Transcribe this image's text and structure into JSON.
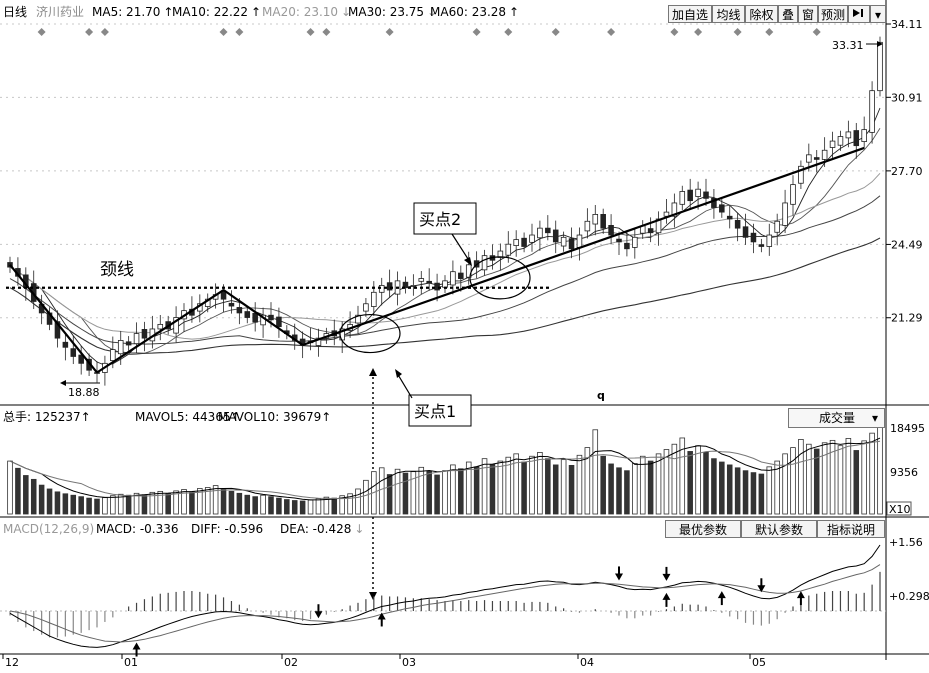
{
  "header": {
    "period": "日线",
    "stock_name": "济川药业",
    "ma": [
      {
        "label": "MA5: 21.70",
        "arrow": "↑",
        "color": "#000000"
      },
      {
        "label": "MA10: 22.22",
        "arrow": "↑",
        "color": "#000000"
      },
      {
        "label": "MA20: 23.10",
        "arrow": "↓",
        "color": "#999999"
      },
      {
        "label": "MA30: 23.75",
        "arrow": "↓",
        "color": "#000000"
      },
      {
        "label": "MA60: 23.28",
        "arrow": "↑",
        "color": "#000000"
      }
    ]
  },
  "toolbar": {
    "add_watch": "加自选",
    "avg_line": "均线",
    "ex_right": "除权",
    "overlay": "叠",
    "window": "窗",
    "forecast": "预测",
    "more_icon": "▾"
  },
  "price_panel": {
    "y_ticks": [
      "34.11",
      "30.91",
      "27.70",
      "24.49",
      "21.29"
    ],
    "neckline_label": "颈线",
    "buy1_label": "买点1",
    "buy2_label": "买点2",
    "low_label": "18.88",
    "high_label": "33.31",
    "stray_mark": "q"
  },
  "volume_panel": {
    "label": "总手: 125237",
    "mavol5": "MAVOL5: 44365",
    "mavol10": "MAVOL10: 39679",
    "arrow": "↑",
    "dropdown": "成交量",
    "y_ticks": [
      "18495",
      "9356"
    ],
    "unit": "X10"
  },
  "macd_panel": {
    "title": "MACD(12,26,9)",
    "macd": "MACD: -0.336",
    "diff": "DIFF: -0.596",
    "dea": "DEA: -0.428",
    "arrow_up": "↑",
    "arrow_down": "↓",
    "btn_opt": "最优参数",
    "btn_default": "默认参数",
    "btn_help": "指标说明",
    "y_ticks": [
      "+1.56",
      "+0.298"
    ]
  },
  "x_axis": [
    "12",
    "01",
    "02",
    "03",
    "04",
    "05"
  ],
  "chart_data": {
    "type": "candlestick",
    "stock": "济川药业",
    "y_range": [
      17.7,
      34.11
    ],
    "neckline": 22.6,
    "buy_points": [
      {
        "label": "买点1",
        "price": 20.6
      },
      {
        "label": "买点2",
        "price": 22.9
      }
    ],
    "extremes": {
      "low": 18.88,
      "high": 33.31
    },
    "trend_lines": [
      {
        "name": "W-left-down",
        "from": 23.6,
        "to": 18.9
      },
      {
        "name": "W-left-up",
        "from": 18.9,
        "to": 22.5
      },
      {
        "name": "W-right-down",
        "from": 22.5,
        "to": 20.1
      },
      {
        "name": "breakout-trend",
        "from": 20.1,
        "to": 28.7
      }
    ],
    "closes": [
      23.5,
      23.1,
      22.6,
      22.0,
      21.5,
      21.0,
      20.4,
      20.0,
      19.6,
      19.3,
      19.0,
      18.9,
      19.3,
      19.9,
      20.3,
      20.1,
      20.6,
      20.4,
      20.8,
      21.0,
      20.8,
      21.3,
      21.6,
      21.4,
      21.9,
      22.1,
      22.3,
      22.1,
      21.8,
      21.5,
      21.3,
      21.1,
      21.4,
      21.2,
      20.9,
      20.6,
      20.3,
      20.1,
      20.2,
      20.4,
      20.6,
      20.5,
      20.8,
      21.0,
      21.4,
      21.9,
      22.4,
      22.7,
      22.5,
      22.9,
      22.6,
      22.7,
      23.0,
      22.8,
      22.5,
      22.9,
      23.3,
      23.0,
      23.6,
      23.5,
      24.0,
      23.8,
      24.2,
      24.5,
      24.7,
      24.4,
      24.9,
      25.2,
      25.0,
      24.6,
      24.8,
      24.3,
      24.9,
      25.5,
      25.8,
      25.2,
      24.9,
      24.6,
      24.3,
      24.8,
      25.3,
      25.0,
      25.6,
      25.9,
      26.3,
      26.8,
      26.4,
      26.9,
      26.5,
      26.1,
      25.9,
      25.6,
      25.2,
      24.8,
      24.6,
      24.4,
      24.9,
      25.5,
      26.3,
      27.1,
      27.9,
      28.4,
      28.2,
      28.6,
      29.0,
      29.2,
      29.4,
      28.8,
      29.5,
      31.2,
      33.31
    ],
    "volume_range": [
      0,
      18495
    ],
    "volumes": [
      11000,
      9500,
      8000,
      7200,
      6000,
      5200,
      4600,
      4200,
      3900,
      3600,
      3300,
      3100,
      3400,
      3800,
      4100,
      3900,
      4300,
      4000,
      4500,
      4700,
      4200,
      4800,
      5100,
      4600,
      5300,
      5500,
      5900,
      5200,
      4700,
      4300,
      3900,
      3600,
      3900,
      3600,
      3300,
      3000,
      2800,
      2700,
      2900,
      3200,
      3500,
      3300,
      3800,
      4200,
      5200,
      7000,
      8800,
      9600,
      8200,
      9300,
      8500,
      8800,
      9700,
      8900,
      8100,
      9000,
      10200,
      9400,
      10800,
      9800,
      11500,
      10300,
      11000,
      11800,
      12500,
      10800,
      12000,
      12800,
      11500,
      10200,
      11300,
      10100,
      12200,
      13800,
      17500,
      12000,
      10400,
      9600,
      9000,
      10500,
      12000,
      11000,
      12500,
      13400,
      14500,
      15800,
      13000,
      14200,
      12800,
      11500,
      10800,
      10200,
      9600,
      9000,
      8600,
      8300,
      9800,
      11000,
      12500,
      13800,
      15500,
      14500,
      13500,
      14800,
      15300,
      14200,
      15700,
      13200,
      15200,
      16800,
      18000
    ],
    "macd": {
      "y_range": [
        -0.9,
        1.56
      ],
      "diff": [
        -0.05,
        -0.15,
        -0.25,
        -0.35,
        -0.45,
        -0.55,
        -0.62,
        -0.68,
        -0.73,
        -0.77,
        -0.79,
        -0.8,
        -0.78,
        -0.74,
        -0.68,
        -0.62,
        -0.56,
        -0.49,
        -0.42,
        -0.35,
        -0.29,
        -0.23,
        -0.17,
        -0.12,
        -0.08,
        -0.05,
        -0.02,
        -0.01,
        -0.02,
        -0.04,
        -0.07,
        -0.1,
        -0.12,
        -0.15,
        -0.19,
        -0.22,
        -0.26,
        -0.29,
        -0.3,
        -0.29,
        -0.27,
        -0.25,
        -0.21,
        -0.16,
        -0.1,
        -0.03,
        0.04,
        0.1,
        0.13,
        0.17,
        0.2,
        0.22,
        0.26,
        0.28,
        0.29,
        0.31,
        0.35,
        0.37,
        0.41,
        0.43,
        0.47,
        0.49,
        0.52,
        0.55,
        0.58,
        0.59,
        0.62,
        0.65,
        0.66,
        0.64,
        0.63,
        0.59,
        0.58,
        0.6,
        0.63,
        0.61,
        0.58,
        0.54,
        0.49,
        0.47,
        0.48,
        0.47,
        0.5,
        0.53,
        0.57,
        0.62,
        0.63,
        0.65,
        0.64,
        0.61,
        0.57,
        0.52,
        0.46,
        0.39,
        0.33,
        0.28,
        0.27,
        0.3,
        0.37,
        0.46,
        0.57,
        0.66,
        0.73,
        0.8,
        0.87,
        0.92,
        0.97,
        0.99,
        1.04,
        1.2,
        1.45
      ],
      "dea": [
        0.0,
        -0.03,
        -0.07,
        -0.13,
        -0.19,
        -0.26,
        -0.33,
        -0.4,
        -0.47,
        -0.53,
        -0.58,
        -0.62,
        -0.66,
        -0.67,
        -0.68,
        -0.67,
        -0.65,
        -0.62,
        -0.58,
        -0.54,
        -0.49,
        -0.44,
        -0.39,
        -0.34,
        -0.29,
        -0.24,
        -0.2,
        -0.16,
        -0.13,
        -0.11,
        -0.1,
        -0.1,
        -0.1,
        -0.11,
        -0.12,
        -0.14,
        -0.16,
        -0.18,
        -0.21,
        -0.22,
        -0.23,
        -0.24,
        -0.23,
        -0.22,
        -0.19,
        -0.16,
        -0.12,
        -0.07,
        -0.03,
        0.01,
        0.05,
        0.08,
        0.12,
        0.15,
        0.17,
        0.2,
        0.23,
        0.26,
        0.29,
        0.32,
        0.35,
        0.38,
        0.41,
        0.44,
        0.47,
        0.5,
        0.52,
        0.55,
        0.57,
        0.59,
        0.6,
        0.6,
        0.6,
        0.6,
        0.61,
        0.61,
        0.6,
        0.59,
        0.57,
        0.55,
        0.53,
        0.52,
        0.51,
        0.51,
        0.52,
        0.54,
        0.56,
        0.58,
        0.59,
        0.6,
        0.59,
        0.58,
        0.55,
        0.52,
        0.48,
        0.44,
        0.41,
        0.39,
        0.39,
        0.41,
        0.44,
        0.49,
        0.54,
        0.59,
        0.65,
        0.7,
        0.75,
        0.8,
        0.84,
        0.91,
        1.02
      ]
    }
  }
}
